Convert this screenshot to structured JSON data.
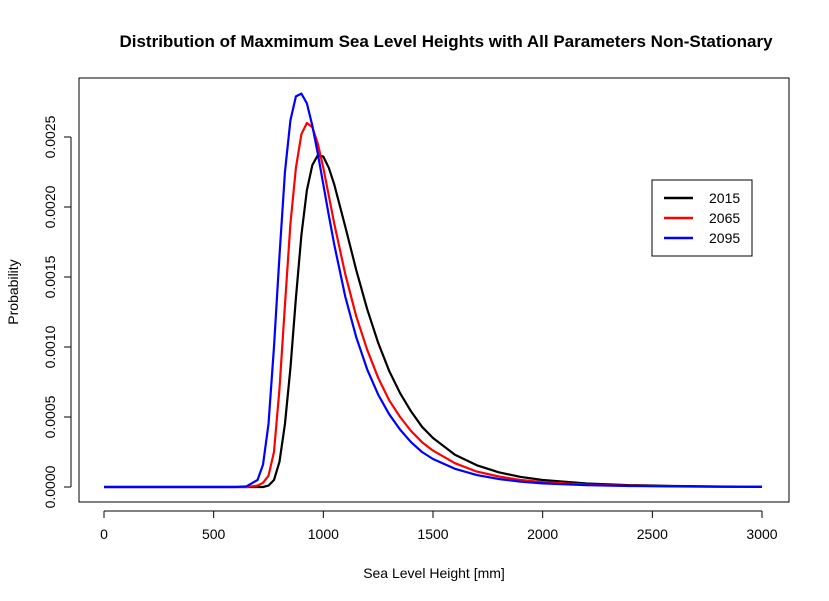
{
  "chart_data": {
    "type": "line",
    "title": "Distribution of Maxmimum Sea Level Heights with All Parameters Non-Stationary",
    "xlabel": "Sea Level Height [mm]",
    "ylabel": "Probability",
    "xlim": [
      0,
      3000
    ],
    "ylim": [
      0,
      0.0028
    ],
    "xticks": [
      0,
      500,
      1000,
      1500,
      2000,
      2500,
      3000
    ],
    "yticks": [
      0.0,
      0.0005,
      0.001,
      0.0015,
      0.002,
      0.0025
    ],
    "xtick_labels": [
      "0",
      "500",
      "1000",
      "1500",
      "2000",
      "2500",
      "3000"
    ],
    "ytick_labels": [
      "0.0000",
      "0.0005",
      "0.0010",
      "0.0015",
      "0.0020",
      "0.0025"
    ],
    "grid": false,
    "legend_position": "right",
    "x": [
      0,
      100,
      200,
      300,
      400,
      500,
      600,
      650,
      700,
      725,
      750,
      775,
      800,
      825,
      850,
      875,
      900,
      925,
      950,
      975,
      1000,
      1025,
      1050,
      1100,
      1150,
      1200,
      1250,
      1300,
      1350,
      1400,
      1450,
      1500,
      1600,
      1700,
      1800,
      1900,
      2000,
      2200,
      2400,
      2600,
      2800,
      3000
    ],
    "series": [
      {
        "name": "2015",
        "color": "#000000",
        "values": [
          0,
          0,
          0,
          0,
          0,
          0,
          0,
          0,
          0,
          0,
          1e-05,
          5e-05,
          0.00018,
          0.00045,
          0.00085,
          0.00135,
          0.0018,
          0.00212,
          0.0023,
          0.00237,
          0.00236,
          0.00228,
          0.00216,
          0.00186,
          0.00155,
          0.00127,
          0.00103,
          0.00083,
          0.00067,
          0.00054,
          0.00043,
          0.00035,
          0.00023,
          0.000155,
          0.000105,
          7.2e-05,
          5e-05,
          2.5e-05,
          1.3e-05,
          7e-06,
          4e-06,
          2e-06
        ]
      },
      {
        "name": "2065",
        "color": "#ff0000",
        "values": [
          0,
          0,
          0,
          0,
          0,
          0,
          0,
          0,
          1e-05,
          3e-05,
          8e-05,
          0.00025,
          0.0007,
          0.0013,
          0.00188,
          0.00228,
          0.00252,
          0.0026,
          0.00257,
          0.00245,
          0.00228,
          0.00208,
          0.00188,
          0.00152,
          0.00122,
          0.00098,
          0.00078,
          0.00062,
          0.0005,
          0.0004,
          0.00032,
          0.00026,
          0.00017,
          0.00011,
          7.5e-05,
          5e-05,
          3.5e-05,
          1.7e-05,
          9e-06,
          5e-06,
          3e-06,
          2e-06
        ]
      },
      {
        "name": "2095",
        "color": "#0000ff",
        "values": [
          0,
          0,
          0,
          0,
          0,
          0,
          0,
          5e-06,
          5e-05,
          0.00016,
          0.00045,
          0.001,
          0.00165,
          0.00225,
          0.00262,
          0.00279,
          0.00281,
          0.00274,
          0.00258,
          0.00238,
          0.00216,
          0.00194,
          0.00173,
          0.00136,
          0.00107,
          0.00084,
          0.00066,
          0.00052,
          0.00041,
          0.00032,
          0.00025,
          0.0002,
          0.00013,
          8.5e-05,
          5.7e-05,
          3.8e-05,
          2.6e-05,
          1.3e-05,
          7e-06,
          4e-06,
          2e-06,
          1e-06
        ]
      }
    ]
  }
}
